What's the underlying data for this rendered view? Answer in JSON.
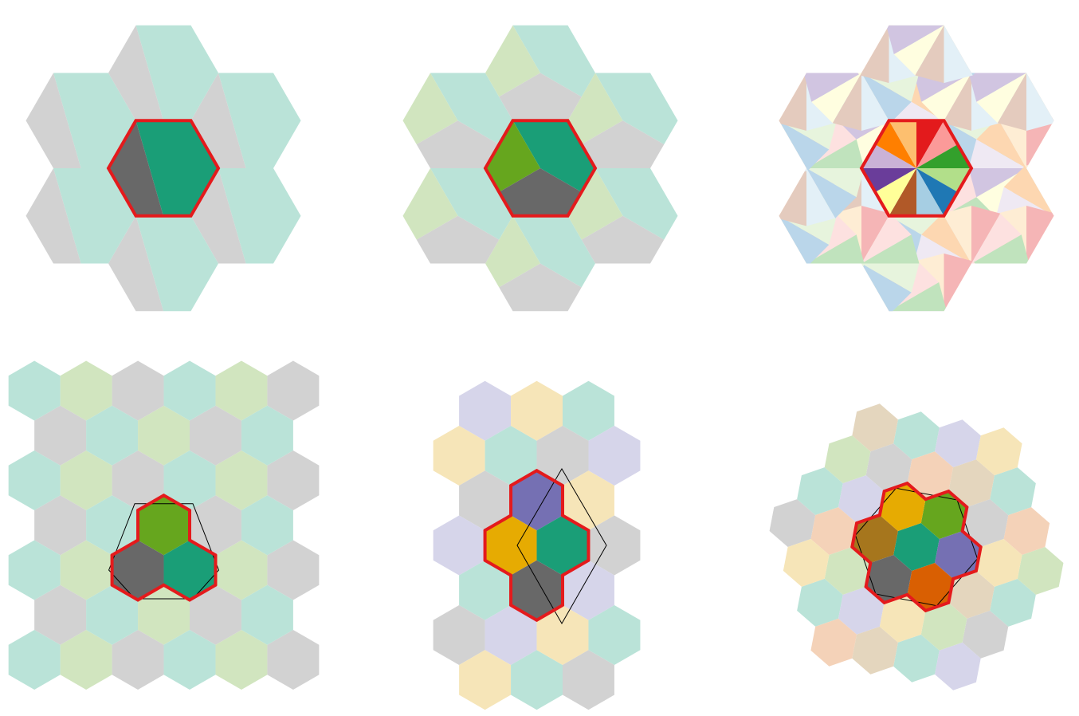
{
  "palette": {
    "gray_light": "#d2d2d2",
    "gray_dark": "#686868",
    "teal_light": "#bae3d8",
    "teal_dark": "#1a9e77",
    "green_light": "#d1e5bf",
    "green_dark": "#66a61e",
    "lavender_light": "#d6d5ea",
    "purple_dark": "#7570b3",
    "cream_light": "#f6e5b8",
    "gold_dark": "#e6ab02",
    "peach_light": "#f4d2b8",
    "orange_dark": "#d95f02",
    "tan_light": "#e4d6be",
    "brown_dark": "#a6761d",
    "outline_red": "#e41a1c",
    "triangle_stroke": "#000000"
  },
  "pinwheel_colors": {
    "strong": [
      "#e31a1c",
      "#fb9a99",
      "#33a02c",
      "#b2df8a",
      "#1f78b4",
      "#a6cee3",
      "#b15928",
      "#ffff99",
      "#6a3d9a",
      "#cab2d6",
      "#ff7f00",
      "#fdbf6f"
    ],
    "faded": [
      "#f5b5b6",
      "#fde1e0",
      "#c0e3bd",
      "#e7f4dd",
      "#bad6ea",
      "#e3f0f7",
      "#e4cbbe",
      "#fffee0",
      "#d1c5e1",
      "#efe9f3",
      "#fdd7b1",
      "#feedd4"
    ]
  },
  "panels": [
    {
      "id": "hexagon-tiling-2-region",
      "type": "large-hex-split-2"
    },
    {
      "id": "hexagon-tiling-3-region",
      "type": "large-hex-split-3"
    },
    {
      "id": "hexagon-tiling-12-pinwheel",
      "type": "large-hex-pinwheel-12"
    },
    {
      "id": "tri-hex-tiling",
      "type": "small-hex-cluster-3"
    },
    {
      "id": "quad-hex-tiling",
      "type": "small-hex-cluster-4"
    },
    {
      "id": "seven-hex-tiling",
      "type": "small-hex-cluster-7"
    }
  ]
}
